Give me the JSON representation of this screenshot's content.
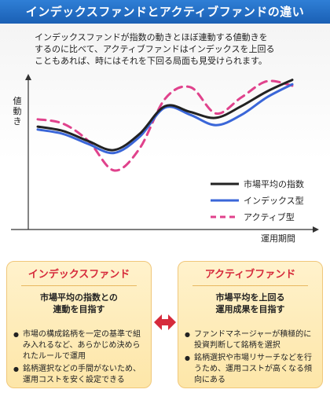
{
  "header": {
    "title": "インデックスファンドとアクティブファンドの違い"
  },
  "intro": {
    "lines": [
      "インデックスファンドが指数の動きとほぼ連動する値動きを",
      "するのに比べて、アクティブファンドはインデックスを上回る",
      "こともあれば、時にはそれを下回る局面も見受けられます。"
    ]
  },
  "colors": {
    "title_bar": "#1f6cc4",
    "market_index": "#222222",
    "index_type": "#3a66d8",
    "active_type": "#e0428c",
    "card_title": "#d62a3b",
    "card_bg": "#fde9b4",
    "arrow": "#d62a3b"
  },
  "chart_data": {
    "type": "line",
    "title": "",
    "ylabel": "値動き",
    "xlabel": "運用期間",
    "x": [
      0,
      0.1,
      0.2,
      0.3,
      0.4,
      0.5,
      0.6,
      0.7,
      0.8,
      0.9,
      1.0
    ],
    "ylim": [
      0,
      1
    ],
    "grid": false,
    "legend_position": "bottom-right",
    "series": [
      {
        "name": "市場平均の指数",
        "color": "#222222",
        "style": "solid",
        "values": [
          0.65,
          0.62,
          0.55,
          0.49,
          0.6,
          0.79,
          0.75,
          0.71,
          0.79,
          0.89,
          0.97
        ]
      },
      {
        "name": "インデックス型",
        "color": "#3a66d8",
        "style": "solid",
        "values": [
          0.63,
          0.6,
          0.53,
          0.47,
          0.58,
          0.78,
          0.73,
          0.66,
          0.73,
          0.85,
          0.94
        ]
      },
      {
        "name": "アクティブ型",
        "color": "#e0428c",
        "style": "dashed",
        "values": [
          0.7,
          0.67,
          0.55,
          0.35,
          0.5,
          0.84,
          0.92,
          0.74,
          0.85,
          0.96,
          0.93
        ]
      }
    ]
  },
  "cards": {
    "index": {
      "title": "インデックスファンド",
      "heading_lines": [
        "市場平均の指数との",
        "連動を目指す"
      ],
      "bullets": [
        "市場の構成銘柄を一定の基準で組み入れるなど、あらかじめ決められたルールで運用",
        "銘柄選択などの手間がないため、運用コストを安く設定できる"
      ]
    },
    "active": {
      "title": "アクティブファンド",
      "heading_lines": [
        "市場平均を上回る",
        "運用成果を目指す"
      ],
      "bullets": [
        "ファンドマネージャーが積極的に投資判断して銘柄を選択",
        "銘柄選択や市場リサーチなどを行うため、運用コストが高くなる傾向にある"
      ]
    }
  }
}
